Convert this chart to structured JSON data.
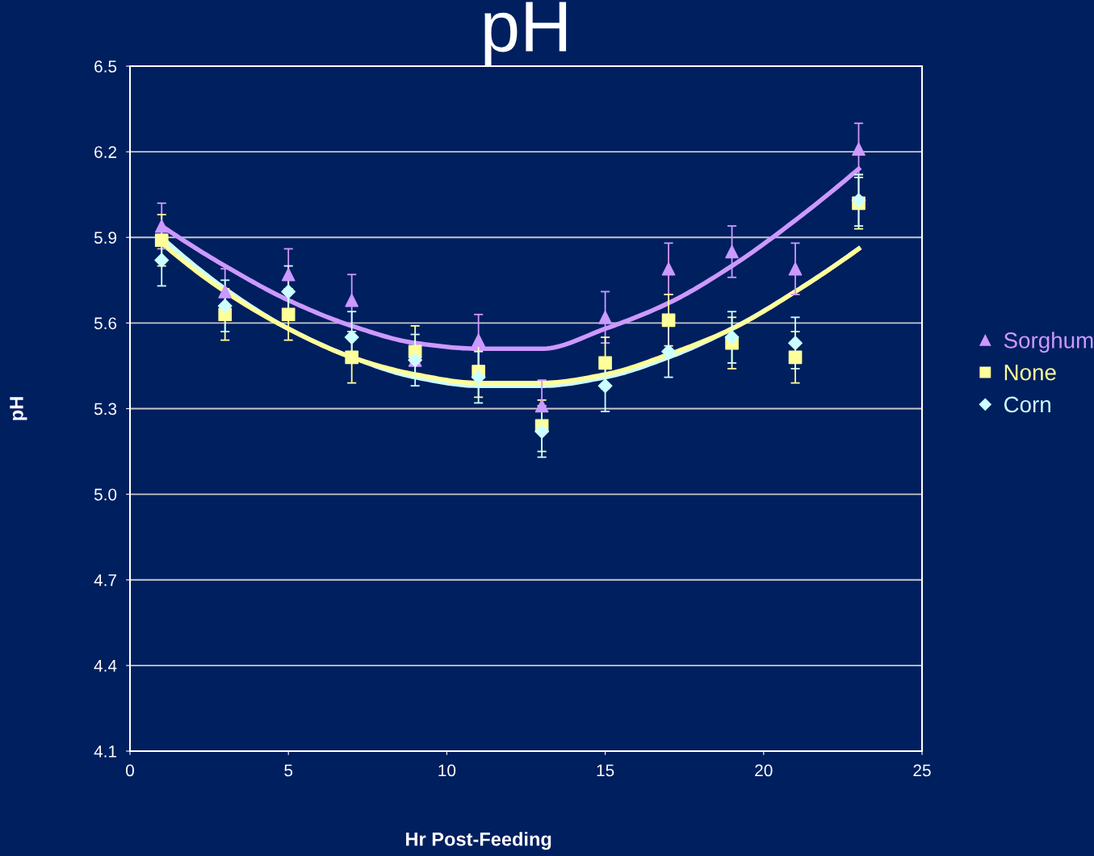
{
  "chart_data": {
    "type": "scatter",
    "title": "pH",
    "xlabel": "Hr Post-Feeding",
    "ylabel": "pH",
    "xlim": [
      0,
      25
    ],
    "xticks": [
      0,
      5,
      10,
      15,
      20,
      25
    ],
    "ylim": [
      4.1,
      6.5
    ],
    "yticks": [
      4.1,
      4.4,
      4.7,
      {
        "value": 5.0,
        "label": "5.0"
      },
      5.3,
      5.6,
      5.9,
      6.2,
      6.5
    ],
    "grid": "y",
    "legend": "right",
    "series": [
      {
        "name": "Sorghum",
        "color": "#cc99ff",
        "marker": "triangle",
        "x": [
          1,
          3,
          5,
          7,
          9,
          11,
          13,
          15,
          17,
          19,
          21,
          23
        ],
        "values": [
          5.94,
          5.71,
          5.77,
          5.68,
          5.47,
          5.54,
          5.31,
          5.62,
          5.79,
          5.85,
          5.79,
          6.21
        ],
        "errors": [
          0.08,
          0.08,
          0.09,
          0.09,
          null,
          0.09,
          0.09,
          0.09,
          0.09,
          0.09,
          0.09,
          0.09
        ]
      },
      {
        "name": "None",
        "color": "#ffff99",
        "marker": "square",
        "x": [
          1,
          3,
          5,
          7,
          9,
          11,
          13,
          15,
          17,
          19,
          21,
          23
        ],
        "values": [
          5.89,
          5.63,
          5.63,
          5.48,
          5.5,
          5.43,
          5.24,
          5.46,
          5.61,
          5.53,
          5.48,
          6.02
        ],
        "errors": [
          0.09,
          0.09,
          0.09,
          0.09,
          0.09,
          0.09,
          0.09,
          0.09,
          0.09,
          0.09,
          0.09,
          0.09
        ]
      },
      {
        "name": "Corn",
        "color": "#ccffff",
        "marker": "diamond",
        "x": [
          1,
          3,
          5,
          7,
          9,
          11,
          13,
          15,
          17,
          19,
          21,
          23
        ],
        "values": [
          5.82,
          5.66,
          5.71,
          5.55,
          5.47,
          5.41,
          5.22,
          5.38,
          5.5,
          5.55,
          5.53,
          6.03
        ],
        "errors": [
          0.09,
          0.09,
          0.09,
          0.09,
          0.09,
          0.09,
          0.09,
          0.09,
          0.09,
          0.09,
          0.09,
          0.09
        ]
      },
      {
        "type": "line",
        "color": "#cc99ff",
        "marker": "none",
        "x": [
          1,
          3,
          5,
          7,
          9,
          11,
          13,
          15,
          17,
          19,
          21,
          23
        ],
        "values": [
          5.94,
          5.8,
          5.68,
          5.59,
          5.53,
          5.51,
          5.51,
          5.58,
          5.67,
          5.8,
          5.96,
          6.14
        ]
      },
      {
        "type": "line",
        "color": "#ccffff",
        "marker": "none",
        "x": [
          1,
          3,
          5,
          7,
          9,
          11,
          13,
          15,
          17,
          19,
          21,
          23
        ],
        "values": [
          5.9,
          5.72,
          5.58,
          5.48,
          5.41,
          5.38,
          5.38,
          5.41,
          5.48,
          5.58,
          5.71,
          5.86
        ]
      },
      {
        "type": "line",
        "color": "#ffff99",
        "marker": "none",
        "x": [
          1,
          3,
          5,
          7,
          9,
          11,
          13,
          15,
          17,
          19,
          21,
          23
        ],
        "values": [
          5.88,
          5.71,
          5.58,
          5.48,
          5.42,
          5.39,
          5.39,
          5.42,
          5.49,
          5.58,
          5.71,
          5.86
        ]
      }
    ]
  }
}
